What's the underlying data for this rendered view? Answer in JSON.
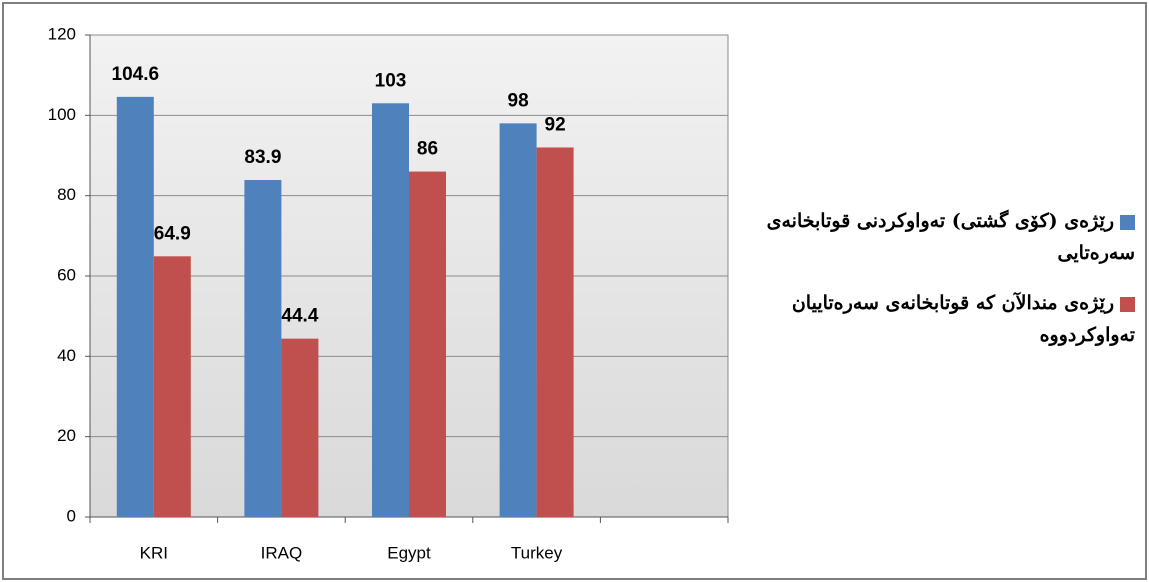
{
  "chart_data": {
    "type": "bar",
    "categories": [
      "KRI",
      "IRAQ",
      "Egypt",
      "Turkey",
      null
    ],
    "series": [
      {
        "name": "رێژەی (کۆی گشتی) تەواوکردنی قوتابخانەی سەرەتایی",
        "color": "#4f81bd",
        "values": [
          104.6,
          83.9,
          103,
          98,
          null
        ]
      },
      {
        "name": "رێژەی مندالآن کە قوتابخانەی سەرەتاییان تەواوکردووە",
        "color": "#c0504d",
        "values": [
          64.9,
          44.4,
          86,
          92,
          null
        ]
      }
    ],
    "ylim": [
      0,
      120
    ],
    "yticks": [
      0,
      20,
      40,
      60,
      80,
      100,
      120
    ],
    "grid": true,
    "legend": "right"
  }
}
